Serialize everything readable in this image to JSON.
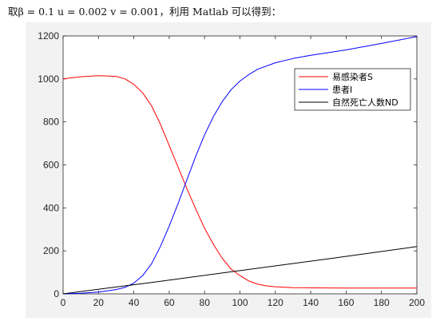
{
  "caption": "取β = 0.1    u = 0.002    v = 0.001，利用 Matlab 可以得到：",
  "chart_data": {
    "type": "line",
    "xlim": [
      0,
      200
    ],
    "ylim": [
      0,
      1200
    ],
    "xticks": [
      0,
      20,
      40,
      60,
      80,
      100,
      120,
      140,
      160,
      180,
      200
    ],
    "yticks": [
      0,
      200,
      400,
      600,
      800,
      1000,
      1200
    ],
    "grid": false,
    "legend_position": "top-right",
    "series": [
      {
        "name": "易感染者S",
        "color": "#ff0000",
        "x": [
          0,
          10,
          20,
          30,
          35,
          40,
          45,
          50,
          55,
          60,
          65,
          70,
          75,
          80,
          85,
          90,
          95,
          100,
          105,
          110,
          115,
          120,
          130,
          140,
          160,
          180,
          200
        ],
        "y": [
          1000,
          1010,
          1015,
          1012,
          1000,
          975,
          935,
          875,
          790,
          690,
          590,
          490,
          395,
          305,
          230,
          165,
          115,
          85,
          60,
          45,
          37,
          33,
          29,
          28,
          27,
          27,
          27
        ]
      },
      {
        "name": "患者I",
        "color": "#0000ff",
        "x": [
          0,
          10,
          20,
          30,
          35,
          40,
          45,
          50,
          55,
          60,
          65,
          70,
          75,
          80,
          85,
          90,
          95,
          100,
          105,
          110,
          120,
          130,
          140,
          160,
          180,
          200
        ],
        "y": [
          0,
          3,
          8,
          20,
          30,
          50,
          85,
          140,
          220,
          315,
          420,
          530,
          640,
          740,
          825,
          895,
          950,
          990,
          1020,
          1045,
          1075,
          1095,
          1110,
          1135,
          1165,
          1197
        ]
      },
      {
        "name": "自然死亡人数ND",
        "color": "#000000",
        "x": [
          0,
          50,
          100,
          150,
          200
        ],
        "y": [
          0,
          53,
          108,
          163,
          220
        ]
      }
    ]
  }
}
